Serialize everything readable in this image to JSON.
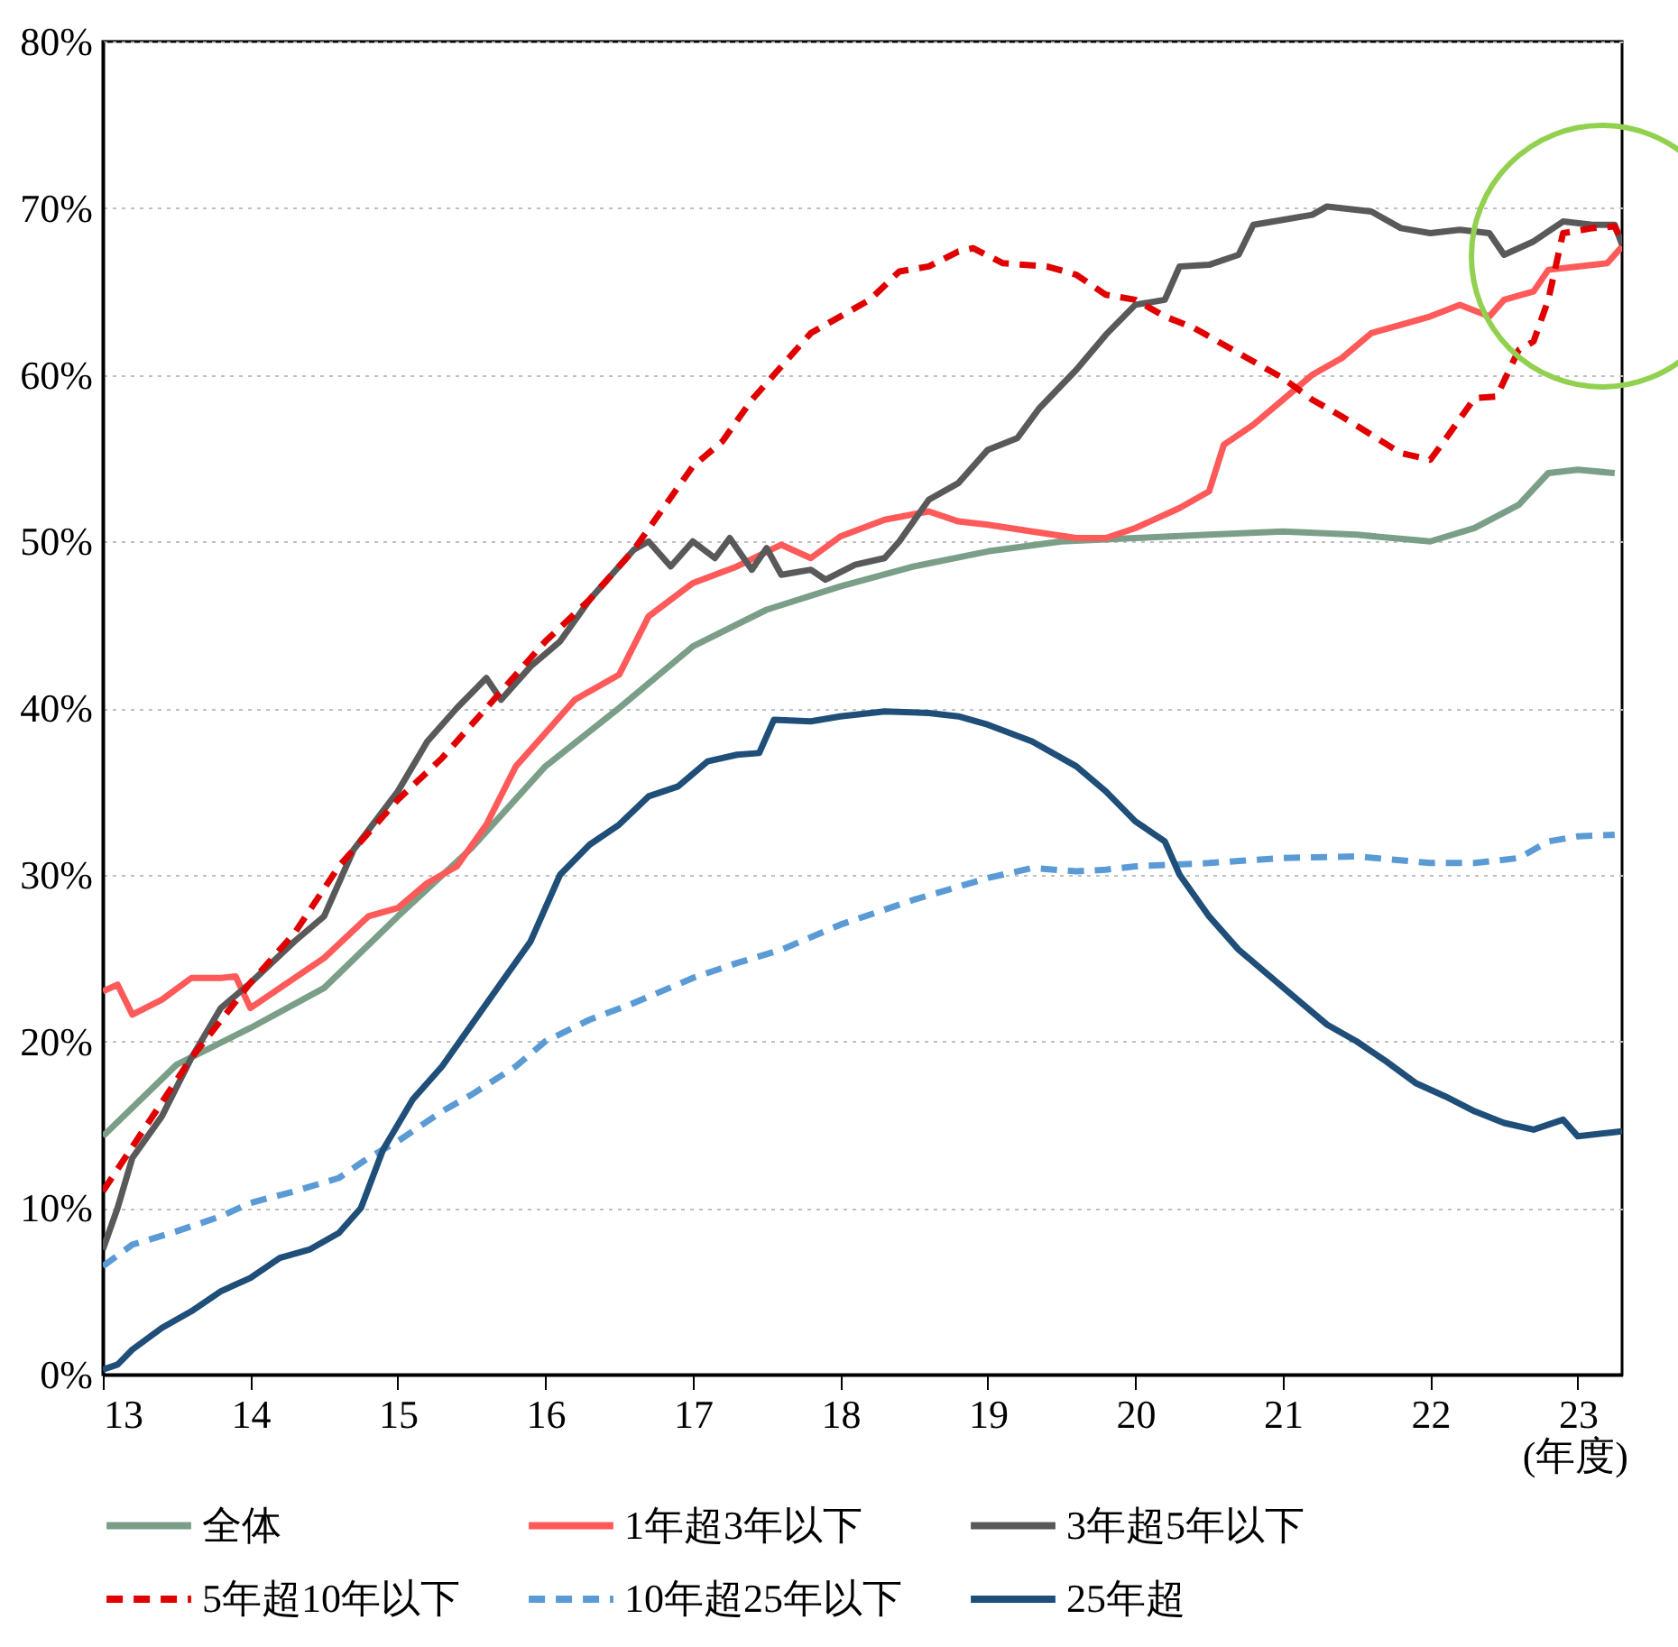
{
  "chart_data": {
    "type": "line",
    "xlabel": "(年度)",
    "xlim": [
      13,
      23.3
    ],
    "xticks": [
      13,
      14,
      15,
      16,
      17,
      18,
      19,
      20,
      21,
      22,
      23
    ],
    "ylim": [
      0,
      80
    ],
    "yticks": [
      {
        "value": 0,
        "label": "0%"
      },
      {
        "value": 10,
        "label": "10%"
      },
      {
        "value": 20,
        "label": "20%"
      },
      {
        "value": 30,
        "label": "30%"
      },
      {
        "value": 40,
        "label": "40%"
      },
      {
        "value": 50,
        "label": "50%"
      },
      {
        "value": 60,
        "label": "60%"
      },
      {
        "value": 70,
        "label": "70%"
      },
      {
        "value": 80,
        "label": "80%"
      }
    ],
    "grid": "y",
    "legend": "bottom",
    "marker": "none",
    "series": [
      {
        "name": "全体",
        "color": "#7a9e87",
        "line_style": "solid",
        "x": [
          13,
          13.5,
          14,
          14.5,
          15,
          15.5,
          16,
          16.5,
          17,
          17.5,
          18,
          18.5,
          19,
          19.5,
          20,
          20.5,
          21,
          21.5,
          22,
          22.3,
          22.6,
          22.8,
          23,
          23.25
        ],
        "values": [
          14.3,
          18.6,
          20.8,
          23.2,
          27.5,
          31.6,
          36.5,
          40,
          43.7,
          45.9,
          47.3,
          48.5,
          49.4,
          50,
          50.2,
          50.4,
          50.6,
          50.4,
          50,
          50.8,
          52.2,
          54.1,
          54.3,
          54.1
        ]
      },
      {
        "name": "1年超3年以下",
        "color": "#ff5a5a",
        "line_style": "solid",
        "x": [
          13,
          13.1,
          13.2,
          13.4,
          13.6,
          13.8,
          13.9,
          14,
          14.2,
          14.5,
          14.8,
          15,
          15.2,
          15.4,
          15.6,
          15.8,
          16,
          16.2,
          16.5,
          16.7,
          17,
          17.3,
          17.6,
          17.8,
          18,
          18.3,
          18.6,
          18.8,
          19,
          19.3,
          19.6,
          19.8,
          20,
          20.3,
          20.5,
          20.6,
          20.8,
          21,
          21.2,
          21.4,
          21.6,
          21.8,
          22,
          22.2,
          22.4,
          22.5,
          22.7,
          22.8,
          23,
          23.2,
          23.3
        ],
        "values": [
          23,
          23.4,
          21.6,
          22.5,
          23.8,
          23.8,
          23.9,
          22,
          23.2,
          25,
          27.5,
          28,
          29.5,
          30.5,
          33,
          36.5,
          38.5,
          40.5,
          42,
          45.5,
          47.5,
          48.5,
          49.8,
          49,
          50.3,
          51.3,
          51.8,
          51.2,
          51,
          50.6,
          50.2,
          50.2,
          50.8,
          52,
          53,
          55.8,
          57,
          58.5,
          60,
          61,
          62.5,
          63,
          63.5,
          64.2,
          63.5,
          64.5,
          65,
          66.3,
          66.5,
          66.7,
          67.7
        ]
      },
      {
        "name": "3年超5年以下",
        "color": "#595959",
        "line_style": "solid",
        "x": [
          13,
          13.1,
          13.2,
          13.4,
          13.6,
          13.8,
          14,
          14.3,
          14.5,
          14.7,
          15,
          15.2,
          15.4,
          15.6,
          15.7,
          15.9,
          16.1,
          16.3,
          16.6,
          16.7,
          16.85,
          17,
          17.15,
          17.25,
          17.4,
          17.5,
          17.6,
          17.8,
          17.9,
          18.1,
          18.3,
          18.4,
          18.6,
          18.8,
          19,
          19.2,
          19.35,
          19.6,
          19.8,
          20,
          20.2,
          20.3,
          20.5,
          20.7,
          20.8,
          21,
          21.2,
          21.3,
          21.6,
          21.8,
          22,
          22.2,
          22.4,
          22.5,
          22.7,
          22.9,
          23.1,
          23.25,
          23.3
        ],
        "values": [
          7.5,
          10,
          13,
          15.5,
          19,
          22,
          23.5,
          26,
          27.5,
          31.5,
          35,
          38,
          40,
          41.8,
          40.5,
          42.5,
          44,
          46.5,
          49.5,
          50,
          48.5,
          50,
          49,
          50.2,
          48.3,
          49.6,
          48,
          48.3,
          47.7,
          48.6,
          49,
          50,
          52.5,
          53.5,
          55.5,
          56.2,
          58,
          60.3,
          62.4,
          64.2,
          64.5,
          66.5,
          66.6,
          67.2,
          69,
          69.3,
          69.6,
          70.1,
          69.8,
          68.8,
          68.5,
          68.7,
          68.5,
          67.2,
          68,
          69.2,
          69,
          69,
          67.8
        ]
      },
      {
        "name": "5年超10年以下",
        "color": "#e00000",
        "line_style": "dashed",
        "x": [
          13,
          13.3,
          13.6,
          14,
          14.3,
          14.6,
          15,
          15.3,
          15.6,
          16,
          16.3,
          16.6,
          16.8,
          17,
          17.2,
          17.4,
          17.6,
          17.8,
          18,
          18.2,
          18.4,
          18.6,
          18.8,
          18.9,
          19.1,
          19.4,
          19.6,
          19.8,
          20,
          20.2,
          20.4,
          20.6,
          20.8,
          21,
          21.2,
          21.4,
          21.6,
          21.8,
          22,
          22.1,
          22.3,
          22.45,
          22.6,
          22.7,
          22.8,
          22.9,
          23.1,
          23.25,
          23.3
        ],
        "values": [
          11,
          15,
          19,
          23.5,
          26.5,
          30.5,
          34.5,
          37,
          40,
          44,
          46.5,
          49.5,
          52,
          54.5,
          56,
          58.5,
          60.5,
          62.5,
          63.5,
          64.5,
          66.2,
          66.5,
          67.4,
          67.6,
          66.7,
          66.5,
          66,
          64.8,
          64.5,
          63.5,
          62.8,
          61.8,
          60.8,
          59.8,
          58.5,
          57.5,
          56.4,
          55.3,
          54.9,
          56.1,
          58.6,
          58.7,
          61.5,
          62,
          64.5,
          68.5,
          68.8,
          68.9,
          68
        ]
      },
      {
        "name": "10年超25年以下",
        "color": "#5b9bd5",
        "line_style": "dashed",
        "x": [
          13,
          13.2,
          13.5,
          13.8,
          14,
          14.3,
          14.6,
          14.8,
          15,
          15.3,
          15.5,
          15.8,
          16,
          16.3,
          16.6,
          17,
          17.3,
          17.6,
          18,
          18.5,
          19,
          19.3,
          19.6,
          19.8,
          20,
          20.5,
          21,
          21.5,
          22,
          22.3,
          22.6,
          22.8,
          23,
          23.25
        ],
        "values": [
          6.5,
          7.8,
          8.6,
          9.5,
          10.3,
          11,
          11.8,
          13,
          14,
          15.8,
          16.8,
          18.5,
          20,
          21.3,
          22.3,
          23.8,
          24.7,
          25.5,
          27,
          28.5,
          29.8,
          30.4,
          30.2,
          30.3,
          30.5,
          30.7,
          31,
          31.1,
          30.7,
          30.7,
          31,
          32,
          32.3,
          32.4
        ]
      },
      {
        "name": "25年超",
        "color": "#1f4e79",
        "line_style": "solid",
        "x": [
          13,
          13.1,
          13.2,
          13.4,
          13.6,
          13.8,
          14,
          14.2,
          14.4,
          14.6,
          14.75,
          14.9,
          15.1,
          15.3,
          15.5,
          15.7,
          15.9,
          16.1,
          16.3,
          16.5,
          16.7,
          16.9,
          17.1,
          17.3,
          17.45,
          17.55,
          17.8,
          18,
          18.3,
          18.6,
          18.8,
          19,
          19.3,
          19.6,
          19.8,
          20,
          20.2,
          20.3,
          20.5,
          20.7,
          20.9,
          21.1,
          21.3,
          21.5,
          21.7,
          21.9,
          22.1,
          22.3,
          22.5,
          22.7,
          22.9,
          23,
          23.3
        ],
        "values": [
          0.3,
          0.6,
          1.5,
          2.8,
          3.8,
          5,
          5.8,
          7,
          7.5,
          8.5,
          10,
          13.5,
          16.5,
          18.5,
          21,
          23.5,
          26,
          30,
          31.8,
          33,
          34.7,
          35.3,
          36.8,
          37.2,
          37.3,
          39.3,
          39.2,
          39.5,
          39.8,
          39.7,
          39.5,
          39,
          38,
          36.5,
          35,
          33.2,
          32,
          30,
          27.5,
          25.5,
          24,
          22.5,
          21,
          20,
          18.8,
          17.5,
          16.7,
          15.8,
          15.1,
          14.7,
          15.3,
          14.3,
          14.6
        ]
      }
    ]
  }
}
